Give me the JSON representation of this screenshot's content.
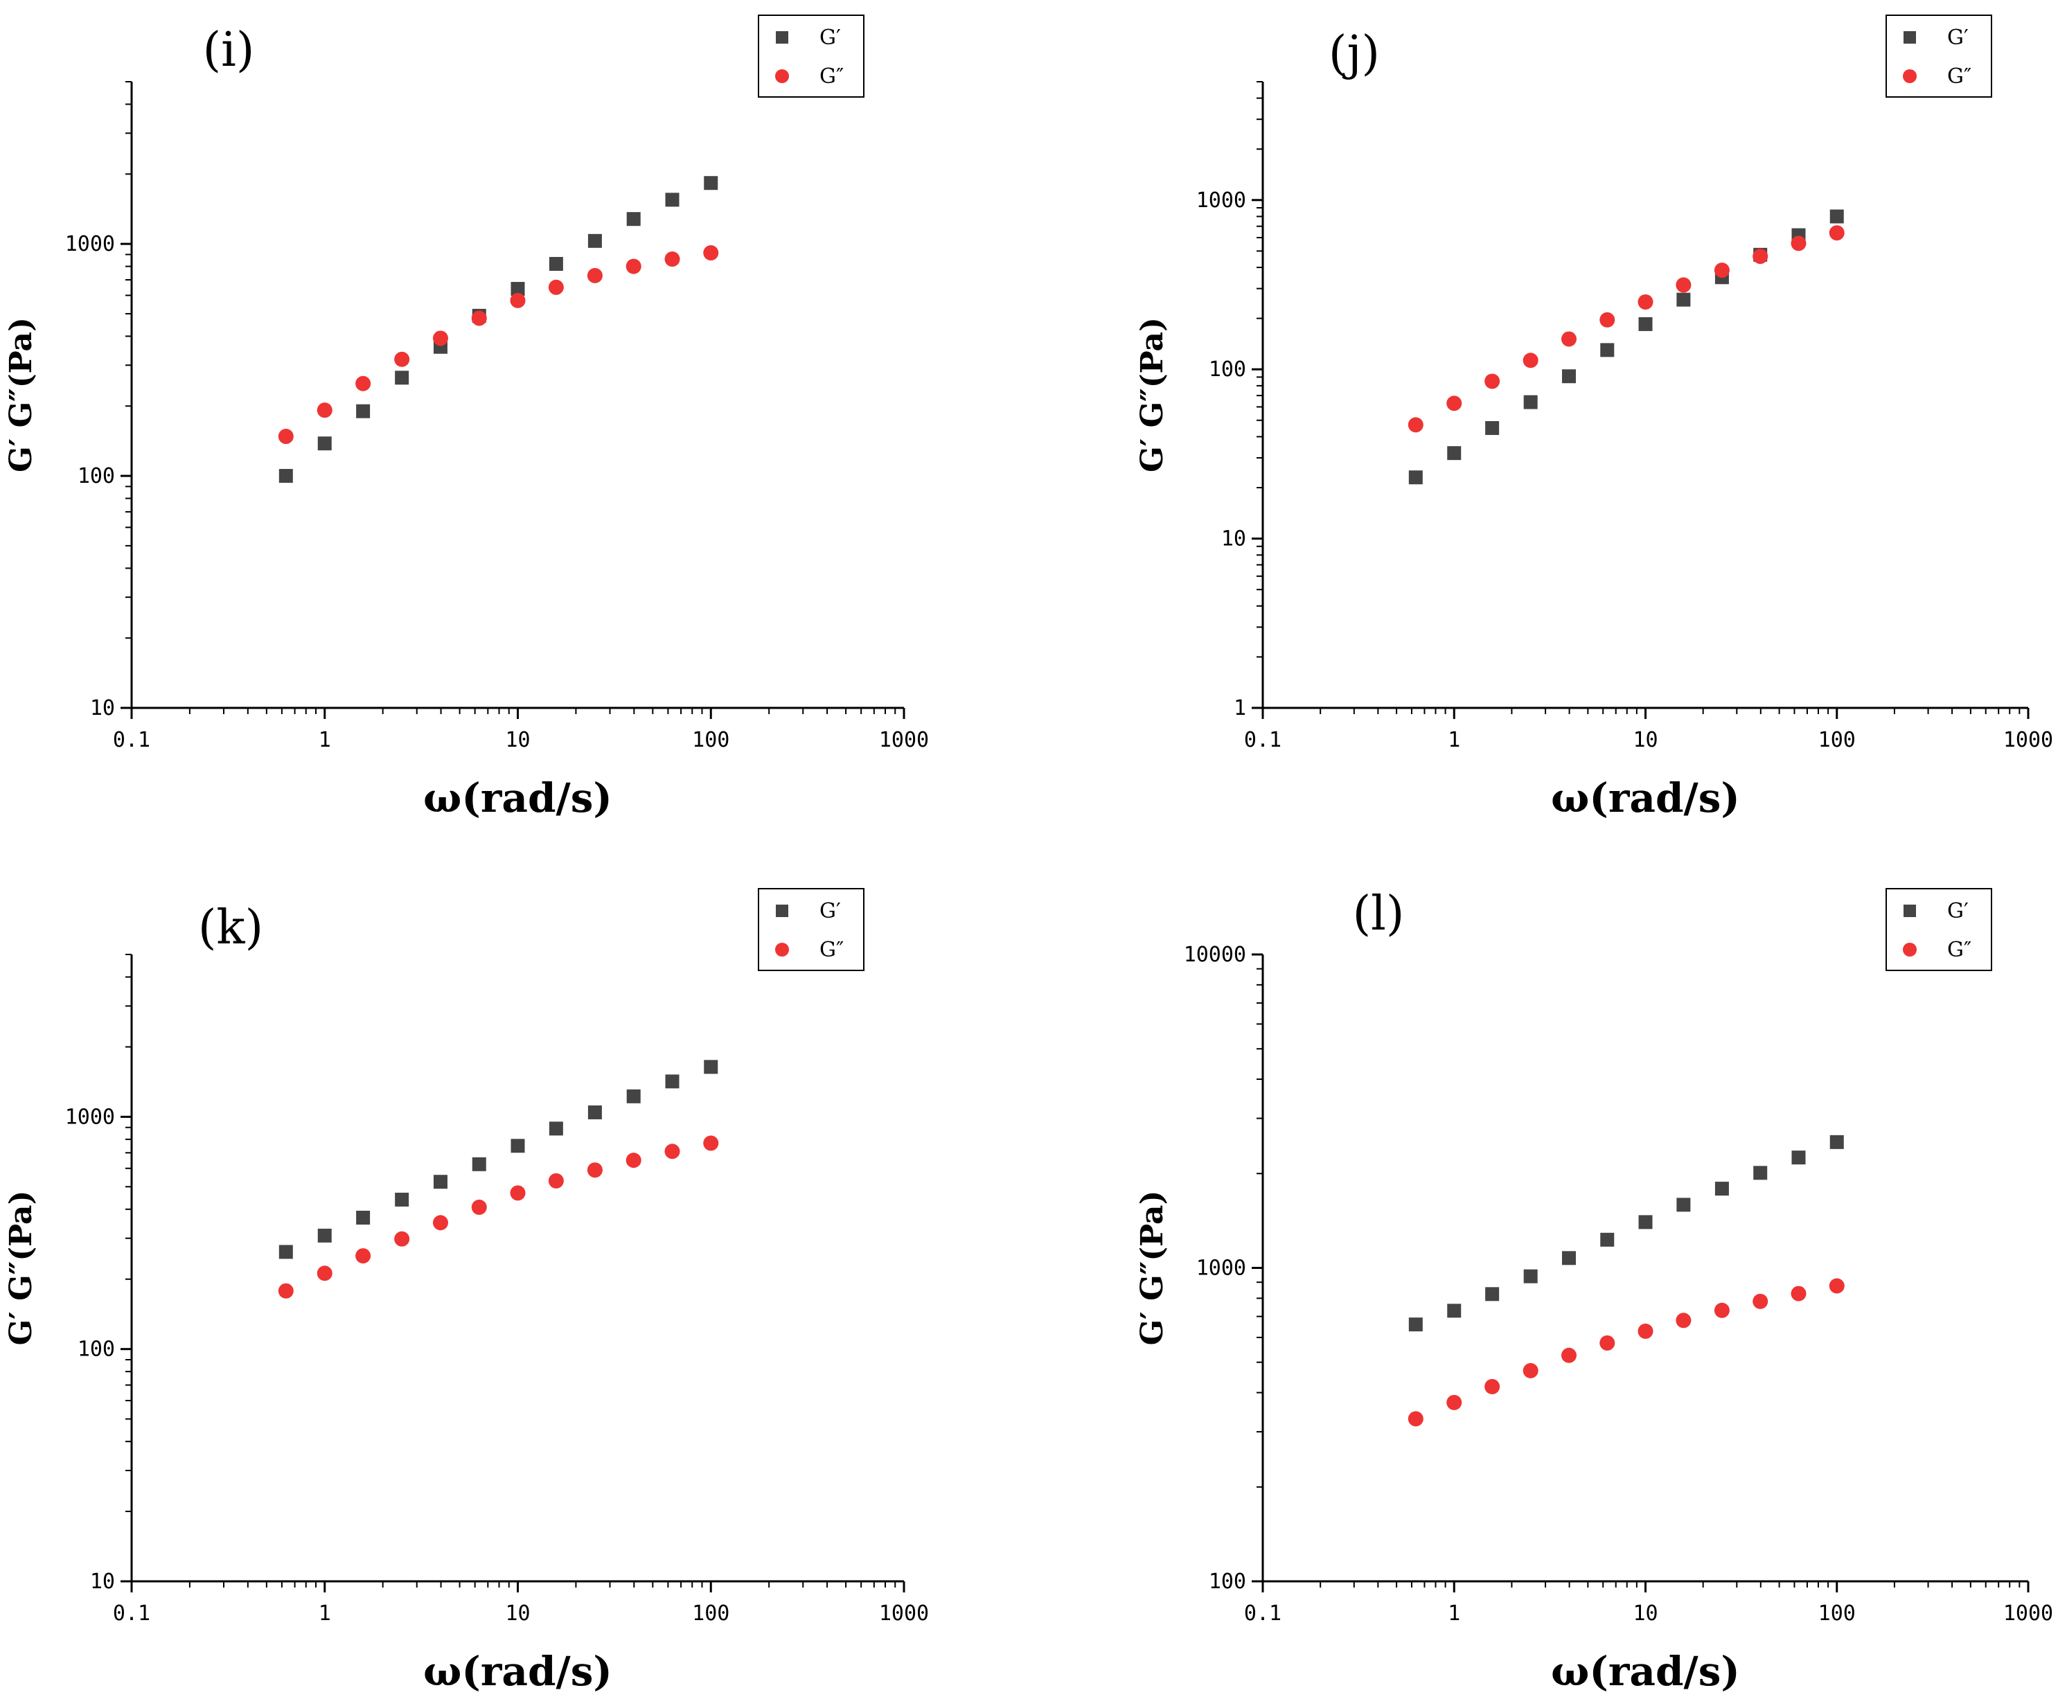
{
  "colors": {
    "g_prime": "#444444",
    "g_double_prime": "#ee3333",
    "axis": "#000000"
  },
  "chart_data": [
    {
      "type": "scatter",
      "title": "(i)",
      "xlabel": "ω(rad/s)",
      "ylabel": "G′ G″(Pa)",
      "xscale": "log",
      "yscale": "log",
      "xlim": [
        0.1,
        1000
      ],
      "ylim": [
        10,
        5000
      ],
      "xticks": [
        "0.1",
        "1",
        "10",
        "100",
        "1000"
      ],
      "yticks": [
        {
          "v": 10,
          "label": "10"
        },
        {
          "v": 100,
          "label": "100"
        },
        {
          "v": 1000,
          "label": "1000"
        }
      ],
      "legend_position": "top-right",
      "x": [
        0.63,
        1.0,
        1.58,
        2.51,
        3.98,
        6.31,
        10,
        15.8,
        25.1,
        39.8,
        63.1,
        100
      ],
      "series": [
        {
          "name": "G′",
          "marker": "square",
          "values": [
            100,
            138,
            190,
            265,
            360,
            490,
            640,
            820,
            1030,
            1280,
            1550,
            1830
          ]
        },
        {
          "name": "G″",
          "marker": "circle",
          "values": [
            148,
            192,
            250,
            318,
            392,
            478,
            570,
            650,
            730,
            800,
            860,
            915
          ]
        }
      ]
    },
    {
      "type": "scatter",
      "title": "(j)",
      "xlabel": "ω(rad/s)",
      "ylabel": "G′ G″(Pa)",
      "xscale": "log",
      "yscale": "log",
      "xlim": [
        0.1,
        1000
      ],
      "ylim": [
        1,
        5000
      ],
      "xticks": [
        "0.1",
        "1",
        "10",
        "100",
        "1000"
      ],
      "yticks": [
        {
          "v": 1,
          "label": "1"
        },
        {
          "v": 10,
          "label": "10"
        },
        {
          "v": 100,
          "label": "100"
        },
        {
          "v": 1000,
          "label": "1000"
        }
      ],
      "legend_position": "top-right",
      "x": [
        0.63,
        1.0,
        1.58,
        2.51,
        3.98,
        6.31,
        10,
        15.8,
        25.1,
        39.8,
        63.1,
        100
      ],
      "series": [
        {
          "name": "G′",
          "marker": "square",
          "values": [
            23,
            32,
            45,
            64,
            91,
            130,
            185,
            258,
            350,
            475,
            620,
            800
          ]
        },
        {
          "name": "G″",
          "marker": "circle",
          "values": [
            47,
            63,
            85,
            113,
            151,
            196,
            250,
            315,
            385,
            465,
            555,
            640
          ]
        }
      ]
    },
    {
      "type": "scatter",
      "title": "(k)",
      "xlabel": "ω(rad/s)",
      "ylabel": "G′ G″(Pa)",
      "xscale": "log",
      "yscale": "log",
      "xlim": [
        0.1,
        1000
      ],
      "ylim": [
        10,
        5000
      ],
      "xticks": [
        "0.1",
        "1",
        "10",
        "100",
        "1000"
      ],
      "yticks": [
        {
          "v": 10,
          "label": "10"
        },
        {
          "v": 100,
          "label": "100"
        },
        {
          "v": 1000,
          "label": "1000"
        }
      ],
      "legend_position": "top-right",
      "x": [
        0.63,
        1.0,
        1.58,
        2.51,
        3.98,
        6.31,
        10,
        15.8,
        25.1,
        39.8,
        63.1,
        100
      ],
      "series": [
        {
          "name": "G′",
          "marker": "square",
          "values": [
            262,
            308,
            368,
            440,
            525,
            625,
            750,
            890,
            1045,
            1225,
            1420,
            1640
          ]
        },
        {
          "name": "G″",
          "marker": "circle",
          "values": [
            178,
            212,
            252,
            298,
            350,
            408,
            470,
            530,
            590,
            650,
            710,
            770
          ]
        }
      ]
    },
    {
      "type": "scatter",
      "title": "(l)",
      "xlabel": "ω(rad/s)",
      "ylabel": "G′ G″(Pa)",
      "xscale": "log",
      "yscale": "log",
      "xlim": [
        0.1,
        1000
      ],
      "ylim": [
        100,
        10000
      ],
      "xticks": [
        "0.1",
        "1",
        "10",
        "100",
        "1000"
      ],
      "yticks": [
        {
          "v": 100,
          "label": "100"
        },
        {
          "v": 1000,
          "label": "1000"
        },
        {
          "v": 10000,
          "label": "10000"
        }
      ],
      "legend_position": "top-right",
      "x": [
        0.63,
        1.0,
        1.58,
        2.51,
        3.98,
        6.31,
        10,
        15.8,
        25.1,
        39.8,
        63.1,
        100
      ],
      "series": [
        {
          "name": "G′",
          "marker": "square",
          "values": [
            660,
            730,
            825,
            940,
            1075,
            1230,
            1400,
            1590,
            1790,
            2010,
            2250,
            2520
          ]
        },
        {
          "name": "G″",
          "marker": "circle",
          "values": [
            330,
            372,
            418,
            470,
            526,
            576,
            628,
            680,
            732,
            782,
            828,
            876
          ]
        }
      ]
    }
  ]
}
